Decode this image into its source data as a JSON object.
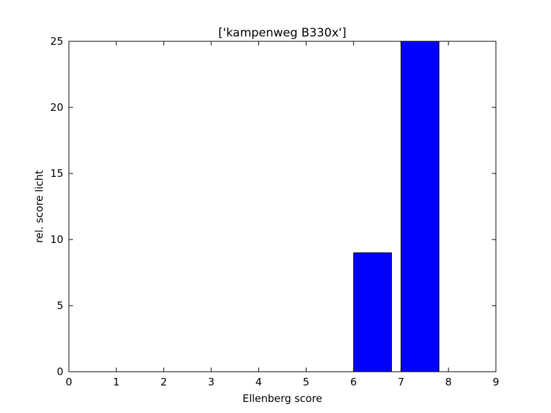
{
  "chart_data": {
    "type": "bar",
    "title": "['kampenweg B330x']",
    "xlabel": "Ellenberg score",
    "ylabel": "rel. score licht",
    "xlim": [
      0,
      9
    ],
    "ylim": [
      0,
      25
    ],
    "xticks": [
      "0",
      "1",
      "2",
      "3",
      "4",
      "5",
      "6",
      "7",
      "8",
      "9"
    ],
    "yticks": [
      "0",
      "5",
      "10",
      "15",
      "20",
      "25"
    ],
    "bar_width": 0.8,
    "bar_color": "#0000ff",
    "edge_color": "#000000",
    "bars": [
      {
        "x": 0,
        "value": 0
      },
      {
        "x": 1,
        "value": 0
      },
      {
        "x": 2,
        "value": 0
      },
      {
        "x": 3,
        "value": 0
      },
      {
        "x": 4,
        "value": 0
      },
      {
        "x": 5,
        "value": 0
      },
      {
        "x": 6,
        "value": 9
      },
      {
        "x": 7,
        "value": 25
      },
      {
        "x": 8,
        "value": 0
      }
    ],
    "grid": false
  }
}
